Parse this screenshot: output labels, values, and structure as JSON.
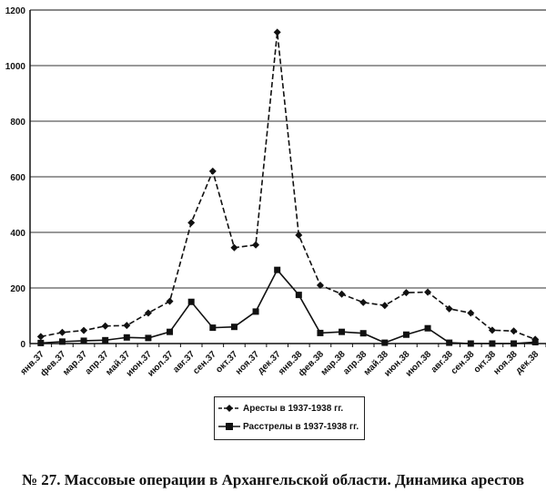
{
  "chart_data": {
    "type": "line",
    "title": "",
    "xlabel": "",
    "ylabel": "",
    "ylim": [
      0,
      1200
    ],
    "yticks": [
      0,
      200,
      400,
      600,
      800,
      1000,
      1200
    ],
    "grid": true,
    "legend_placement": "bottom",
    "categories": [
      "янв.37",
      "фев.37",
      "мар.37",
      "апр.37",
      "май.37",
      "июн.37",
      "июл.37",
      "авг.37",
      "сен.37",
      "окт.37",
      "ноя.37",
      "дек.37",
      "янв.38",
      "фев.38",
      "мар.38",
      "апр.38",
      "май.38",
      "июн.38",
      "июл.38",
      "авг.38",
      "сен.38",
      "окт.38",
      "ноя.38",
      "дек.38"
    ],
    "series": [
      {
        "name": "Аресты в 1937-1938 гг.",
        "style": "dashed",
        "marker": "diamond",
        "values": [
          25,
          40,
          47,
          63,
          65,
          110,
          152,
          435,
          620,
          345,
          355,
          1120,
          390,
          210,
          178,
          148,
          137,
          183,
          185,
          125,
          110,
          48,
          45,
          15
        ]
      },
      {
        "name": "Расстрелы в 1937-1938 гг.",
        "style": "solid",
        "marker": "square",
        "values": [
          2,
          7,
          10,
          12,
          22,
          20,
          42,
          150,
          57,
          60,
          115,
          265,
          175,
          38,
          42,
          37,
          3,
          32,
          55,
          3,
          0,
          0,
          0,
          5
        ]
      }
    ]
  },
  "caption": "№ 27. Массовые операции в Архангельской области. Динамика арестов"
}
